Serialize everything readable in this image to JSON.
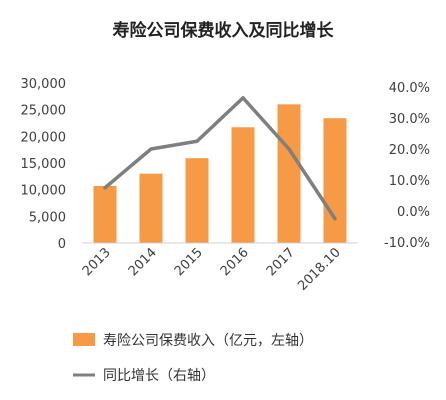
{
  "chart_data": {
    "type": "bar",
    "title": "寿险公司保费收入及同比增长",
    "categories": [
      "2013",
      "2014",
      "2015",
      "2016",
      "2017",
      "2018.10"
    ],
    "series": [
      {
        "name": "寿险公司保费收入（亿元，左轴）",
        "type": "bar",
        "axis": "left",
        "color": "#F79A46",
        "values": [
          10700,
          13000,
          15900,
          21700,
          26000,
          23400
        ]
      },
      {
        "name": "同比增长（右轴）",
        "type": "line",
        "axis": "right",
        "color": "#7F7F7F",
        "values": [
          0.075,
          0.2,
          0.225,
          0.365,
          0.2,
          -0.025
        ]
      }
    ],
    "y_left": {
      "min": 0,
      "max": 30000,
      "step": 5000,
      "tick_labels": [
        "0",
        "5,000",
        "10,000",
        "15,000",
        "20,000",
        "25,000",
        "30,000"
      ]
    },
    "y_right": {
      "min": -0.1,
      "max": 0.4,
      "step": 0.1,
      "tick_labels": [
        "-10.0%",
        "0.0%",
        "10.0%",
        "20.0%",
        "30.0%",
        "40.0%"
      ]
    },
    "grid": false,
    "legend_position": "bottom"
  }
}
